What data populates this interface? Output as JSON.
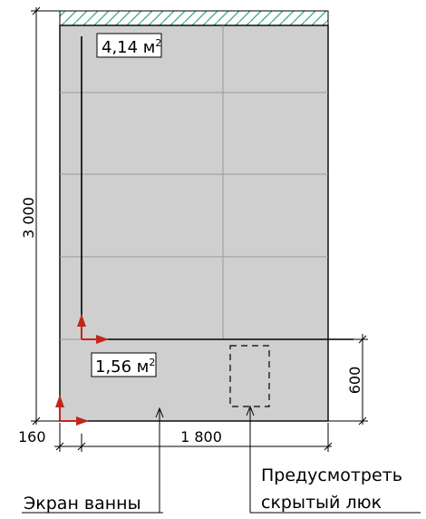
{
  "areas": {
    "upper": "4,14 м",
    "upper_sup": "2",
    "lower": "1,56 м",
    "lower_sup": "2"
  },
  "dimensions": {
    "height": "3 000",
    "width": "1 800",
    "offset": "160",
    "lower_height": "600"
  },
  "notes": {
    "bath_screen": "Экран ванны",
    "hatch_line1": "Предусмотреть",
    "hatch_line2": "скрытый люк"
  },
  "colors": {
    "tile": "#cfcfcf",
    "grout": "#9a9a9a",
    "hatch": "#3aa58a",
    "arrow": "#c0261c",
    "line": "#000000"
  },
  "icons": {
    "origin_marker": "red-axis-arrow-icon"
  }
}
